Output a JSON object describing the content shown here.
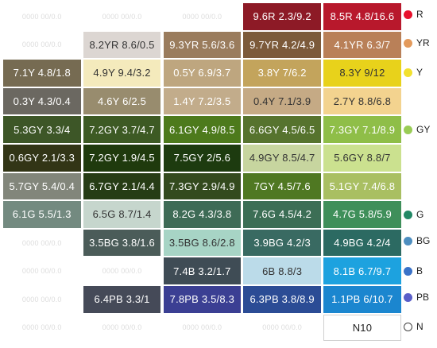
{
  "placeholder": "0000 00/0.0",
  "rows": [
    [
      null,
      null,
      null,
      null,
      {
        "label": "9.6R 2.3/9.2",
        "bg": "#8d1a26",
        "fg": "#ffffff"
      },
      {
        "label": "8.5R 4.8/16.6",
        "bg": "#b8182c",
        "fg": "#ffffff"
      }
    ],
    [
      null,
      {
        "label": "8.2YR 8.6/0.5",
        "bg": "#dcd6d2",
        "fg": "#333333"
      },
      {
        "label": "9.3YR 5.6/3.6",
        "bg": "#9a7c5d",
        "fg": "#ffffff"
      },
      {
        "label": "9.7YR 4.2/4.9",
        "bg": "#7c5a3a",
        "fg": "#ffffff"
      },
      {
        "label": "4.1YR 6.3/7",
        "bg": "#b98058",
        "fg": "#ffffff"
      }
    ],
    [
      {
        "label": "7.1Y 4.8/1.8",
        "bg": "#766b52",
        "fg": "#ffffff"
      },
      {
        "label": "4.9Y 9.4/3.2",
        "bg": "#f4eabc",
        "fg": "#333333"
      },
      {
        "label": "0.5Y 6.9/3.7",
        "bg": "#bea67f",
        "fg": "#ffffff"
      },
      {
        "label": "3.8Y 7/6.2",
        "bg": "#c3a45c",
        "fg": "#ffffff"
      },
      {
        "label": "8.3Y 9/12",
        "bg": "#e8d21b",
        "fg": "#333333"
      }
    ],
    [
      {
        "label": "0.3Y 4.3/0.4",
        "bg": "#6b6861",
        "fg": "#ffffff"
      },
      {
        "label": "4.6Y 6/2.5",
        "bg": "#988c6e",
        "fg": "#ffffff"
      },
      {
        "label": "1.4Y 7.2/3.5",
        "bg": "#c2ac8b",
        "fg": "#ffffff"
      },
      {
        "label": "0.4Y 7.1/3.9",
        "bg": "#c5aa85",
        "fg": "#333333"
      },
      {
        "label": "2.7Y 8.8/6.8",
        "bg": "#f3d38f",
        "fg": "#333333"
      }
    ],
    [
      {
        "label": "5.3GY 3.3/4",
        "bg": "#3d5627",
        "fg": "#ffffff"
      },
      {
        "label": "7.2GY 3.7/4.7",
        "bg": "#3d5a24",
        "fg": "#ffffff"
      },
      {
        "label": "6.1GY 4.9/8.5",
        "bg": "#4d7a1c",
        "fg": "#ffffff"
      },
      {
        "label": "6.6GY 4.5/6.5",
        "bg": "#56732e",
        "fg": "#ffffff"
      },
      {
        "label": "7.3GY 7.1/8.9",
        "bg": "#8fbe48",
        "fg": "#ffffff"
      }
    ],
    [
      {
        "label": "0.6GY 2.1/3.3",
        "bg": "#323516",
        "fg": "#ffffff"
      },
      {
        "label": "7.2GY 1.9/4.5",
        "bg": "#1f3a0d",
        "fg": "#ffffff"
      },
      {
        "label": "7.5GY 2/5.6",
        "bg": "#1d3b0f",
        "fg": "#ffffff"
      },
      {
        "label": "4.9GY 8.5/4.7",
        "bg": "#c7d59f",
        "fg": "#333333"
      },
      {
        "label": "5.6GY 8.8/7",
        "bg": "#cbe18f",
        "fg": "#333333"
      }
    ],
    [
      {
        "label": "5.7GY 5.4/0.4",
        "bg": "#82867b",
        "fg": "#ffffff"
      },
      {
        "label": "6.7GY 2.1/4.4",
        "bg": "#263c15",
        "fg": "#ffffff"
      },
      {
        "label": "7.3GY 2.9/4.9",
        "bg": "#334a1e",
        "fg": "#ffffff"
      },
      {
        "label": "7GY 4.5/7.6",
        "bg": "#4f7822",
        "fg": "#ffffff"
      },
      {
        "label": "5.1GY 7.4/6.8",
        "bg": "#a9bf62",
        "fg": "#ffffff"
      }
    ],
    [
      {
        "label": "6.1G 5.5/1.3",
        "bg": "#738a80",
        "fg": "#ffffff"
      },
      {
        "label": "6.5G 8.7/1.4",
        "bg": "#c6d6cd",
        "fg": "#333333"
      },
      {
        "label": "8.2G 4.3/3.8",
        "bg": "#3e6b56",
        "fg": "#ffffff"
      },
      {
        "label": "7.6G 4.5/4.2",
        "bg": "#3c6e55",
        "fg": "#ffffff"
      },
      {
        "label": "4.7G 5.8/5.9",
        "bg": "#3f8f5a",
        "fg": "#ffffff"
      }
    ],
    [
      null,
      {
        "label": "3.5BG 3.8/1.6",
        "bg": "#4b5c59",
        "fg": "#ffffff"
      },
      {
        "label": "3.5BG 8.6/2.8",
        "bg": "#a7d4c5",
        "fg": "#333333"
      },
      {
        "label": "3.9BG 4.2/3",
        "bg": "#396a62",
        "fg": "#ffffff"
      },
      {
        "label": "4.9BG 4.2/4",
        "bg": "#2c6a62",
        "fg": "#ffffff"
      }
    ],
    [
      null,
      null,
      {
        "label": "7.4B 3.2/1.7",
        "bg": "#3f4c55",
        "fg": "#ffffff"
      },
      {
        "label": "6B 8.8/3",
        "bg": "#bbdbe9",
        "fg": "#333333"
      },
      {
        "label": "8.1B 6.7/9.7",
        "bg": "#1da2df",
        "fg": "#ffffff"
      }
    ],
    [
      null,
      {
        "label": "6.4PB 3.3/1",
        "bg": "#454a58",
        "fg": "#ffffff"
      },
      {
        "label": "7.8PB 3.5/8.3",
        "bg": "#3b3f93",
        "fg": "#ffffff"
      },
      {
        "label": "6.3PB 3.8/8.9",
        "bg": "#2b4c95",
        "fg": "#ffffff"
      },
      {
        "label": "1.1PB 6/10.7",
        "bg": "#1b86cf",
        "fg": "#ffffff"
      }
    ],
    [
      null,
      null,
      null,
      null,
      {
        "label": "N10",
        "bg": "#ffffff",
        "fg": "#222222",
        "border": true
      }
    ]
  ],
  "legend": [
    {
      "label": "R",
      "color": "#e8102c"
    },
    {
      "label": "YR",
      "color": "#e39a5c"
    },
    {
      "label": "Y",
      "color": "#f2e12e"
    },
    {
      "label": "GY",
      "color": "#99cc55"
    },
    {
      "label": "G",
      "color": "#228865"
    },
    {
      "label": "BG",
      "color": "#4d8ec0"
    },
    {
      "label": "B",
      "color": "#3a72c8"
    },
    {
      "label": "PB",
      "color": "#5a5ec8"
    },
    {
      "label": "N",
      "color": "#ffffff"
    }
  ]
}
